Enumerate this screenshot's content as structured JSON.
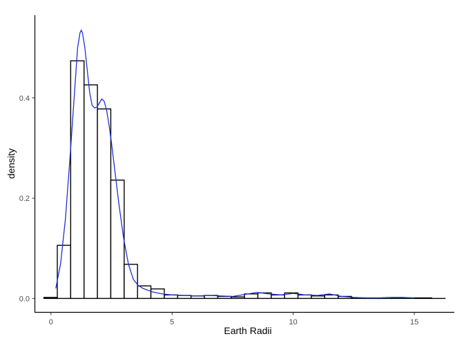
{
  "chart_data": {
    "type": "histogram",
    "title": "",
    "xlabel": "Earth Radii",
    "ylabel": "density",
    "xlim": [
      -0.65,
      16.65
    ],
    "ylim": [
      -0.027,
      0.565
    ],
    "x_ticks": [
      0,
      5,
      10,
      15
    ],
    "x_tick_labels": [
      "0",
      "5",
      "10",
      "15"
    ],
    "y_ticks": [
      0.0,
      0.2,
      0.4
    ],
    "y_tick_labels": [
      "0.0",
      "0.2",
      "0.4"
    ],
    "grid": false,
    "legend": "none",
    "colors": {
      "bars_fill": "#ffffff",
      "bars_stroke": "#000000",
      "density": "#1f2fd6"
    },
    "bins": {
      "start": -0.29,
      "width": 0.552,
      "values": [
        0.002,
        0.106,
        0.474,
        0.426,
        0.378,
        0.236,
        0.068,
        0.025,
        0.019,
        0.007,
        0.006,
        0.005,
        0.006,
        0.004,
        0.003,
        0.009,
        0.011,
        0.007,
        0.011,
        0.007,
        0.005,
        0.007,
        0.004,
        0.001,
        0.001,
        0.0,
        0.001,
        0.001,
        0.001,
        0.0
      ]
    },
    "density": {
      "x": [
        0.2,
        0.4,
        0.6,
        0.8,
        1.0,
        1.1,
        1.2,
        1.25,
        1.3,
        1.4,
        1.5,
        1.6,
        1.7,
        1.8,
        1.9,
        2.0,
        2.1,
        2.2,
        2.3,
        2.4,
        2.5,
        2.6,
        2.8,
        3.0,
        3.2,
        3.4,
        3.6,
        3.8,
        4.2,
        4.6,
        5.0,
        5.5,
        6.0,
        6.5,
        7.0,
        7.5,
        8.0,
        8.5,
        9.0,
        9.5,
        10.0,
        10.5,
        11.0,
        11.5,
        12.0,
        12.5,
        13.0,
        13.5,
        14.0,
        14.5,
        15.0
      ],
      "y": [
        0.02,
        0.07,
        0.16,
        0.29,
        0.43,
        0.5,
        0.53,
        0.535,
        0.53,
        0.5,
        0.455,
        0.41,
        0.385,
        0.38,
        0.382,
        0.39,
        0.398,
        0.393,
        0.375,
        0.345,
        0.31,
        0.27,
        0.19,
        0.12,
        0.068,
        0.038,
        0.026,
        0.02,
        0.013,
        0.009,
        0.007,
        0.006,
        0.005,
        0.006,
        0.005,
        0.004,
        0.008,
        0.012,
        0.009,
        0.007,
        0.01,
        0.007,
        0.006,
        0.009,
        0.004,
        0.002,
        0.001,
        0.001,
        0.002,
        0.002,
        0.001
      ]
    }
  }
}
